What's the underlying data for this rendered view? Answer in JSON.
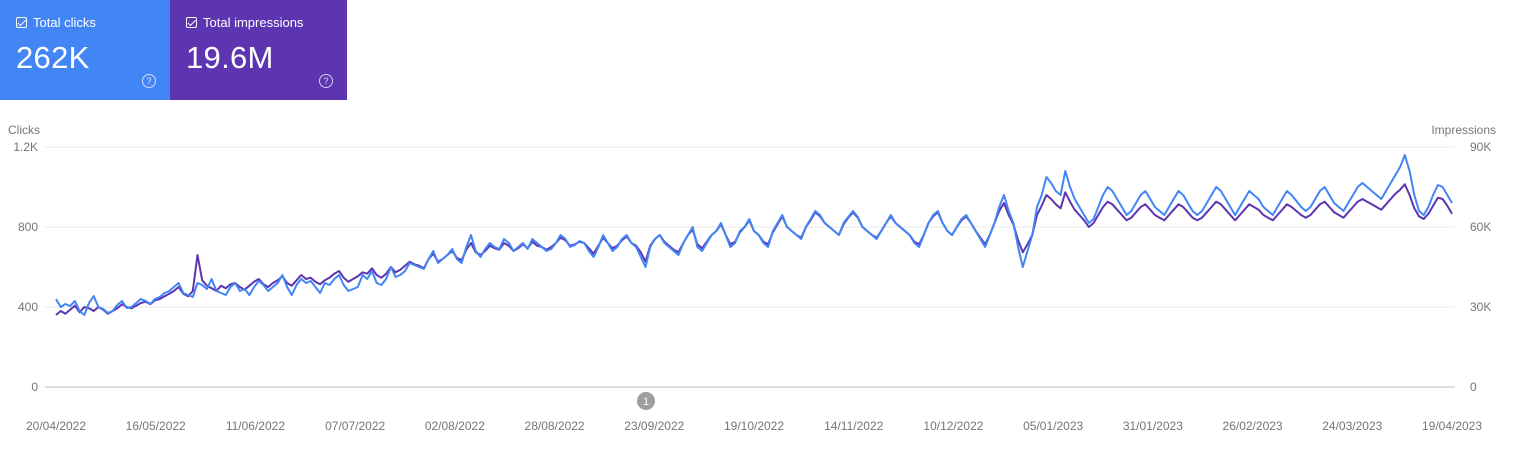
{
  "cards": [
    {
      "label": "Total clicks",
      "value": "262K",
      "color": "#4285f4",
      "help_icon": "help-circle-icon",
      "checkbox_icon": "checkbox-checked-icon"
    },
    {
      "label": "Total impressions",
      "value": "19.6M",
      "color": "#5e35b1",
      "help_icon": "help-circle-icon",
      "checkbox_icon": "checkbox-checked-icon"
    }
  ],
  "chart_data": {
    "type": "line",
    "ylabel_left": "Clicks",
    "ylabel_right": "Impressions",
    "yticks_left": [
      "0",
      "400",
      "800",
      "1.2K"
    ],
    "yticks_right": [
      "0",
      "30K",
      "60K",
      "90K"
    ],
    "ylim_left": [
      0,
      1200
    ],
    "ylim_right": [
      0,
      90000
    ],
    "xticks": [
      "20/04/2022",
      "16/05/2022",
      "11/06/2022",
      "07/07/2022",
      "02/08/2022",
      "28/08/2022",
      "23/09/2022",
      "19/10/2022",
      "14/11/2022",
      "10/12/2022",
      "05/01/2023",
      "31/01/2023",
      "26/02/2023",
      "24/03/2023",
      "19/04/2023"
    ],
    "x_start": "20/04/2022",
    "x_end": "19/04/2023",
    "grid": true,
    "annotation": {
      "label": "1",
      "date": "23/09/2022"
    },
    "series": [
      {
        "axis": "left",
        "color": "#4285f4",
        "values": [
          440,
          400,
          415,
          405,
          430,
          380,
          360,
          420,
          455,
          400,
          390,
          370,
          380,
          410,
          430,
          395,
          400,
          420,
          440,
          430,
          415,
          440,
          450,
          470,
          480,
          500,
          520,
          470,
          460,
          450,
          520,
          510,
          490,
          540,
          480,
          470,
          460,
          500,
          520,
          480,
          490,
          460,
          500,
          530,
          510,
          480,
          500,
          520,
          560,
          500,
          460,
          510,
          540,
          520,
          530,
          500,
          470,
          520,
          510,
          540,
          560,
          510,
          480,
          490,
          500,
          560,
          540,
          580,
          520,
          510,
          540,
          600,
          550,
          560,
          580,
          620,
          610,
          600,
          590,
          640,
          680,
          620,
          640,
          660,
          690,
          640,
          620,
          700,
          760,
          680,
          650,
          690,
          720,
          700,
          690,
          740,
          720,
          680,
          700,
          720,
          690,
          740,
          720,
          700,
          680,
          690,
          720,
          760,
          740,
          700,
          710,
          730,
          720,
          680,
          650,
          700,
          760,
          720,
          680,
          700,
          740,
          760,
          720,
          700,
          650,
          600,
          700,
          740,
          760,
          720,
          700,
          680,
          660,
          720,
          760,
          800,
          700,
          680,
          720,
          760,
          780,
          820,
          760,
          700,
          720,
          780,
          800,
          840,
          780,
          760,
          720,
          700,
          780,
          820,
          860,
          800,
          780,
          760,
          740,
          800,
          840,
          880,
          860,
          820,
          800,
          780,
          760,
          820,
          850,
          880,
          850,
          800,
          780,
          760,
          740,
          780,
          820,
          860,
          820,
          800,
          780,
          760,
          720,
          700,
          760,
          820,
          860,
          880,
          820,
          780,
          760,
          800,
          840,
          860,
          820,
          780,
          740,
          700,
          760,
          820,
          900,
          960,
          880,
          820,
          700,
          600,
          680,
          760,
          900,
          960,
          1050,
          1020,
          980,
          960,
          1080,
          1000,
          940,
          900,
          860,
          820,
          840,
          900,
          960,
          1000,
          980,
          940,
          900,
          860,
          880,
          920,
          960,
          980,
          940,
          900,
          880,
          860,
          900,
          940,
          980,
          960,
          920,
          880,
          860,
          880,
          920,
          960,
          1000,
          980,
          940,
          900,
          860,
          900,
          940,
          980,
          960,
          940,
          900,
          880,
          860,
          900,
          940,
          980,
          960,
          930,
          900,
          880,
          900,
          940,
          980,
          1000,
          960,
          920,
          900,
          880,
          920,
          960,
          1000,
          1020,
          1000,
          980,
          960,
          940,
          980,
          1020,
          1060,
          1100,
          1160,
          1080,
          960,
          880,
          860,
          900,
          960,
          1010,
          1000,
          960,
          920
        ],
        "__note": ""
      },
      {
        "axis": "right",
        "color": "#5e35b1",
        "values": [
          27000,
          28500,
          27500,
          29000,
          30500,
          28000,
          30000,
          29500,
          28500,
          30000,
          29000,
          27500,
          28500,
          29500,
          31000,
          30000,
          29500,
          30500,
          31500,
          32000,
          31000,
          32500,
          33000,
          34000,
          35000,
          36000,
          37500,
          35000,
          34000,
          36000,
          49500,
          40000,
          38000,
          37000,
          36000,
          38000,
          37000,
          38500,
          39000,
          37500,
          36500,
          38000,
          39500,
          40500,
          38500,
          37500,
          39000,
          40000,
          41500,
          39000,
          38000,
          40000,
          42000,
          40500,
          41000,
          39500,
          38500,
          40000,
          41000,
          42500,
          43500,
          41000,
          39500,
          40500,
          41500,
          43000,
          42500,
          44500,
          42000,
          41000,
          42500,
          45000,
          43000,
          44000,
          45500,
          47000,
          46000,
          45500,
          44500,
          48000,
          50000,
          47000,
          48000,
          49500,
          51000,
          48500,
          47500,
          51500,
          54000,
          50500,
          49500,
          51000,
          53000,
          52000,
          51500,
          54000,
          53000,
          51000,
          52000,
          53500,
          52000,
          54500,
          53000,
          52500,
          51500,
          52500,
          54000,
          56000,
          55000,
          53000,
          53500,
          54500,
          54000,
          52000,
          50000,
          53000,
          56000,
          54000,
          52000,
          53000,
          55000,
          56500,
          54000,
          53000,
          50500,
          47000,
          53000,
          55500,
          57000,
          54500,
          53000,
          51500,
          50500,
          54000,
          57000,
          59000,
          53500,
          52000,
          54500,
          57000,
          58500,
          61000,
          57000,
          53500,
          54500,
          58000,
          60000,
          62500,
          58500,
          57000,
          54500,
          53500,
          58000,
          61000,
          64000,
          60000,
          58500,
          57000,
          56000,
          60000,
          62500,
          65500,
          64000,
          61500,
          60000,
          58500,
          57000,
          61000,
          63500,
          65500,
          63500,
          60000,
          58500,
          57000,
          56000,
          58500,
          61500,
          64000,
          61500,
          60000,
          58500,
          57000,
          54500,
          53500,
          57000,
          61500,
          64000,
          65500,
          61500,
          58500,
          57000,
          60000,
          62500,
          64000,
          61500,
          58500,
          56000,
          53500,
          57000,
          61500,
          66000,
          69000,
          64500,
          61000,
          55000,
          50500,
          53500,
          57000,
          64500,
          68000,
          72000,
          70500,
          68500,
          67000,
          73000,
          69500,
          66500,
          64500,
          62500,
          60000,
          61500,
          64500,
          67500,
          69500,
          68500,
          66500,
          64500,
          62500,
          63500,
          65500,
          67500,
          68500,
          66500,
          64500,
          63500,
          62500,
          64500,
          66500,
          68500,
          67500,
          65500,
          63500,
          62500,
          63500,
          65500,
          67500,
          69500,
          68500,
          66500,
          64500,
          62500,
          64500,
          66500,
          68500,
          67500,
          66500,
          64500,
          63500,
          62500,
          64500,
          66500,
          68500,
          67500,
          66000,
          64500,
          63500,
          64500,
          66500,
          68500,
          69500,
          67500,
          65500,
          64500,
          63500,
          65500,
          67500,
          69500,
          70500,
          69500,
          68500,
          67500,
          66500,
          68500,
          70500,
          72500,
          74000,
          76000,
          72000,
          67000,
          64000,
          63000,
          65000,
          68000,
          71000,
          70500,
          68000,
          65000
        ]
      }
    ]
  }
}
